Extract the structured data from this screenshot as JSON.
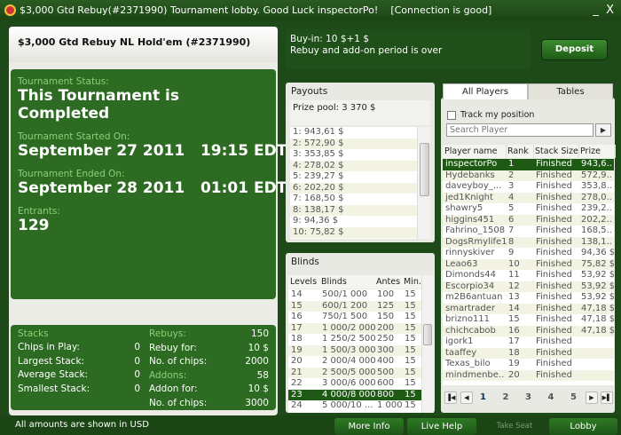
{
  "window": {
    "title": "$3,000 Gtd Rebuy(#2371990) Tournament lobby. Good Luck inspectorPo!",
    "connection": "[Connection is good]",
    "minimize": "_",
    "close": "X"
  },
  "header": {
    "tournament_name": "$3,000 Gtd Rebuy NL Hold'em (#2371990)",
    "buyin": "Buy-in: 10 $+1 $",
    "rebuy_note": "Rebuy and add-on period is over",
    "deposit": "Deposit"
  },
  "status": {
    "status_label": "Tournament Status:",
    "status_value": "This Tournament is Completed",
    "started_label": "Tournament Started On:",
    "started_value": "September 27 2011   19:15 EDT",
    "ended_label": "Tournament Ended On:",
    "ended_value": "September 28 2011   01:01 EDT",
    "entrants_label": "Entrants:",
    "entrants_value": "129"
  },
  "stacks": {
    "title": "Stacks",
    "rows": [
      {
        "label": "Chips in Play:",
        "value": "0"
      },
      {
        "label": "Largest Stack:",
        "value": "0"
      },
      {
        "label": "Average Stack:",
        "value": "0"
      },
      {
        "label": "Smallest Stack:",
        "value": "0"
      }
    ]
  },
  "rebuys": {
    "rows": [
      {
        "label": "Rebuys:",
        "value": "150",
        "heading": true
      },
      {
        "label": "Rebuy for:",
        "value": "10 $"
      },
      {
        "label": "No. of chips:",
        "value": "2000"
      },
      {
        "label": "Addons:",
        "value": "58",
        "heading": true
      },
      {
        "label": "Addon for:",
        "value": "10 $"
      },
      {
        "label": "No. of chips:",
        "value": "3000"
      }
    ]
  },
  "payouts": {
    "title": "Payouts",
    "prize_pool": "Prize pool: 3 370 $",
    "items": [
      "1: 943,61 $",
      "2: 572,90 $",
      "3: 353,85 $",
      "4: 278,02 $",
      "5: 239,27 $",
      "6: 202,20 $",
      "7: 168,50 $",
      "8: 138,17 $",
      "9: 94,36 $",
      "10: 75,82 $"
    ]
  },
  "blinds": {
    "title": "Blinds",
    "columns": [
      "Levels",
      "Blinds",
      "Antes",
      "Min."
    ],
    "selected_level": "23",
    "rows": [
      [
        "14",
        "500/1 000",
        "100",
        "15"
      ],
      [
        "15",
        "600/1 200",
        "125",
        "15"
      ],
      [
        "16",
        "750/1 500",
        "150",
        "15"
      ],
      [
        "17",
        "1 000/2 000",
        "200",
        "15"
      ],
      [
        "18",
        "1 250/2 500",
        "250",
        "15"
      ],
      [
        "19",
        "1 500/3 000",
        "300",
        "15"
      ],
      [
        "20",
        "2 000/4 000",
        "400",
        "15"
      ],
      [
        "21",
        "2 500/5 000",
        "500",
        "15"
      ],
      [
        "22",
        "3 000/6 000",
        "600",
        "15"
      ],
      [
        "23",
        "4 000/8 000",
        "800",
        "15"
      ],
      [
        "24",
        "5 000/10 ...",
        "1 000",
        "15"
      ]
    ]
  },
  "players": {
    "tabs": [
      "All Players",
      "Tables"
    ],
    "active_tab": "All Players",
    "track_label": "Track my position",
    "search_placeholder": "Search Player",
    "search_button": "▶",
    "columns": [
      "Player name",
      "Rank",
      "Stack Size",
      "Prize"
    ],
    "selected": "inspectorPo",
    "rows": [
      [
        "inspectorPo",
        "1",
        "Finished",
        "943,6.."
      ],
      [
        "Hydebanks",
        "2",
        "Finished",
        "572,9.."
      ],
      [
        "daveyboy_...",
        "3",
        "Finished",
        "353,8.."
      ],
      [
        "jed1Knight",
        "4",
        "Finished",
        "278,0.."
      ],
      [
        "shawry5",
        "5",
        "Finished",
        "239,2.."
      ],
      [
        "higgins451",
        "6",
        "Finished",
        "202,2.."
      ],
      [
        "Fahrino_1508",
        "7",
        "Finished",
        "168,5.."
      ],
      [
        "DogsRmylife1",
        "8",
        "Finished",
        "138,1.."
      ],
      [
        "rinnyskiver",
        "9",
        "Finished",
        "94,36 $"
      ],
      [
        "Leao63",
        "10",
        "Finished",
        "75,82 $"
      ],
      [
        "Dimonds44",
        "11",
        "Finished",
        "53,92 $"
      ],
      [
        "Escorpio34",
        "12",
        "Finished",
        "53,92 $"
      ],
      [
        "m2B6antuan",
        "13",
        "Finished",
        "53,92 $"
      ],
      [
        "smartrader",
        "14",
        "Finished",
        "47,18 $"
      ],
      [
        "brizno111",
        "15",
        "Finished",
        "47,18 $"
      ],
      [
        "chichcabob",
        "16",
        "Finished",
        "47,18 $"
      ],
      [
        "igork1",
        "17",
        "Finished",
        ""
      ],
      [
        "taaffey",
        "18",
        "Finished",
        ""
      ],
      [
        "Texas_bilo",
        "19",
        "Finished",
        ""
      ],
      [
        "mindmenbe..",
        "20",
        "Finished",
        ""
      ]
    ],
    "pages": [
      "1",
      "2",
      "3",
      "4",
      "5"
    ],
    "current_page": "1"
  },
  "footer": {
    "note": "All amounts are shown in USD",
    "more_info": "More Info",
    "live_help": "Live Help",
    "take_seat": "Take Seat",
    "lobby": "Lobby"
  }
}
